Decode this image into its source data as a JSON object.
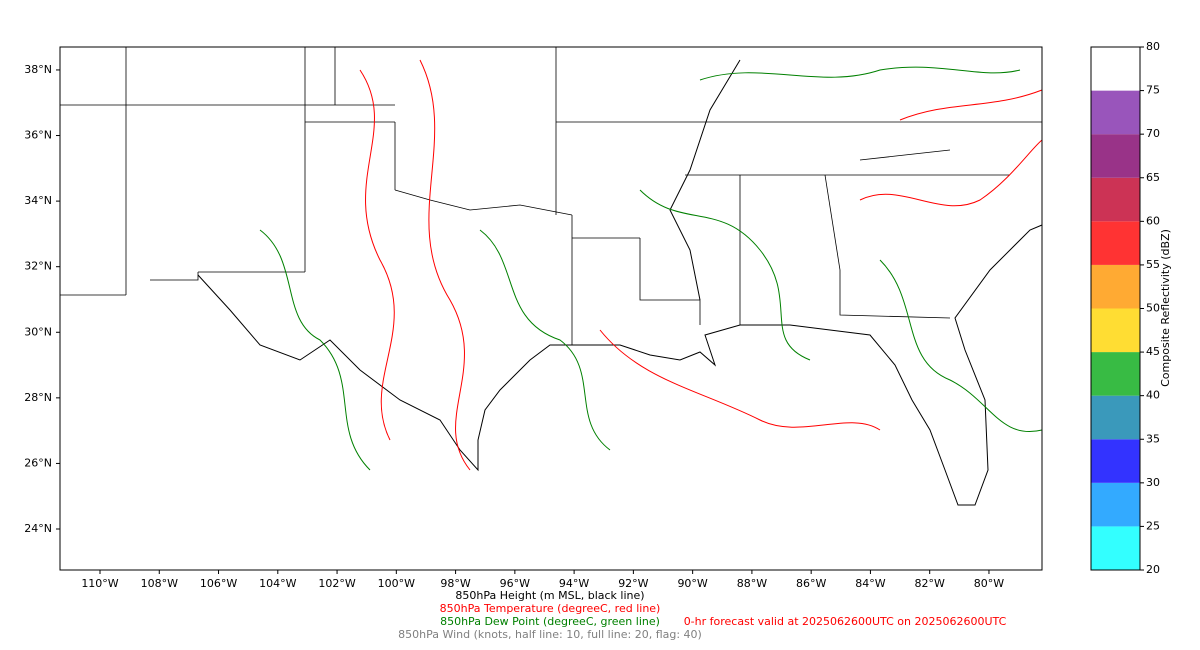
{
  "map": {
    "lon_range": [
      -111.35,
      -78.21
    ],
    "lat_range": [
      22.75,
      38.7
    ],
    "lon_ticks": [
      {
        "value": -110,
        "label": "110°W"
      },
      {
        "value": -108,
        "label": "108°W"
      },
      {
        "value": -106,
        "label": "106°W"
      },
      {
        "value": -104,
        "label": "104°W"
      },
      {
        "value": -102,
        "label": "102°W"
      },
      {
        "value": -100,
        "label": "100°W"
      },
      {
        "value": -98,
        "label": "98°W"
      },
      {
        "value": -96,
        "label": "96°W"
      },
      {
        "value": -94,
        "label": "94°W"
      },
      {
        "value": -92,
        "label": "92°W"
      },
      {
        "value": -90,
        "label": "90°W"
      },
      {
        "value": -88,
        "label": "88°W"
      },
      {
        "value": -86,
        "label": "86°W"
      },
      {
        "value": -84,
        "label": "84°W"
      },
      {
        "value": -82,
        "label": "82°W"
      },
      {
        "value": -80,
        "label": "80°W"
      }
    ],
    "lat_ticks": [
      {
        "value": 38,
        "label": "38°N"
      },
      {
        "value": 36,
        "label": "36°N"
      },
      {
        "value": 34,
        "label": "34°N"
      },
      {
        "value": 32,
        "label": "32°N"
      },
      {
        "value": 30,
        "label": "30°N"
      },
      {
        "value": 28,
        "label": "28°N"
      },
      {
        "value": 26,
        "label": "26°N"
      },
      {
        "value": 24,
        "label": "24°N"
      }
    ]
  },
  "colorbar": {
    "label": "Composite Reflectivity (dBZ)",
    "range": [
      20,
      80
    ],
    "ticks": [
      20,
      25,
      30,
      35,
      40,
      45,
      50,
      55,
      60,
      65,
      70,
      75,
      80
    ],
    "levels": [
      20,
      25,
      30,
      35,
      40,
      45,
      50,
      55,
      60,
      65,
      70,
      75,
      80
    ],
    "colors": [
      "#33ffff",
      "#33aaff",
      "#3333ff",
      "#3a99bb",
      "#38bb44",
      "#ffdd33",
      "#ffaa33",
      "#ff3333",
      "#cc3355",
      "#993388",
      "#9955bb",
      "#ffffff"
    ]
  },
  "captions": [
    {
      "text": "850hPa Height (m MSL, black line)",
      "color": "#000000"
    },
    {
      "text": "850hPa Temperature (degreeC, red line)",
      "color": "#ff0000"
    },
    {
      "text": "850hPa Dew Point (degreeC, green line)",
      "color": "#008000"
    },
    {
      "text": "850hPa Wind (knots, half line: 10, full line: 20, flag: 40)",
      "color": "#808080"
    }
  ],
  "valid": {
    "text": "0-hr forecast valid at 2025062600UTC on 2025062600UTC",
    "color": "#ff0000"
  }
}
